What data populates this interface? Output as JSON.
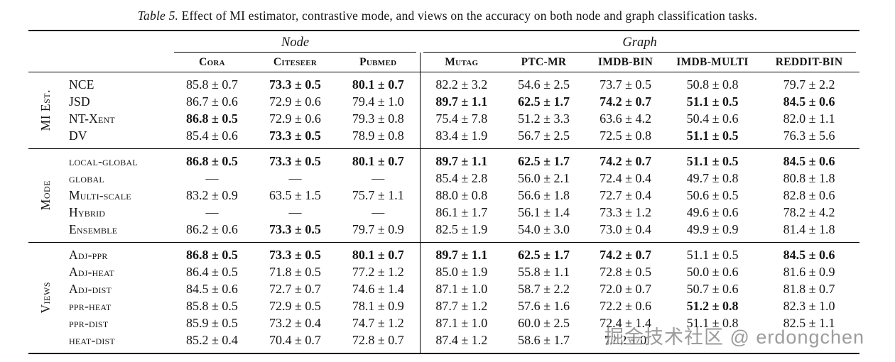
{
  "caption": {
    "label": "Table 5.",
    "text": " Effect of MI estimator, contrastive mode, and views on the accuracy on both node and graph classification tasks."
  },
  "table": {
    "col_groups": [
      {
        "label": "Node",
        "span": 3
      },
      {
        "label": "Graph",
        "span": 5
      }
    ],
    "columns": [
      "Cora",
      "Citeseer",
      "Pubmed",
      "Mutag",
      "PTC-MR",
      "IMDB-BIN",
      "IMDB-MULTI",
      "REDDIT-BIN"
    ],
    "sections": [
      {
        "group_label": "MI Est.",
        "rows": [
          {
            "label": "NCE",
            "values": [
              "85.8 ± 0.7",
              "73.3 ± 0.5",
              "80.1 ± 0.7",
              "82.2 ± 3.2",
              "54.6 ± 2.5",
              "73.7 ± 0.5",
              "50.8 ± 0.8",
              "79.7 ± 2.2"
            ],
            "bold": [
              0,
              1,
              1,
              0,
              0,
              0,
              0,
              0
            ]
          },
          {
            "label": "JSD",
            "values": [
              "86.7 ± 0.6",
              "72.9 ± 0.6",
              "79.4 ± 1.0",
              "89.7 ± 1.1",
              "62.5 ± 1.7",
              "74.2 ± 0.7",
              "51.1 ± 0.5",
              "84.5 ± 0.6"
            ],
            "bold": [
              0,
              0,
              0,
              1,
              1,
              1,
              1,
              1
            ]
          },
          {
            "label": "NT-Xent",
            "values": [
              "86.8 ± 0.5",
              "72.9 ± 0.6",
              "79.3 ± 0.8",
              "75.4 ± 7.8",
              "51.2 ± 3.3",
              "63.6 ± 4.2",
              "50.4 ± 0.6",
              "82.0 ± 1.1"
            ],
            "bold": [
              1,
              0,
              0,
              0,
              0,
              0,
              0,
              0
            ]
          },
          {
            "label": "DV",
            "values": [
              "85.4 ± 0.6",
              "73.3 ± 0.5",
              "78.9 ± 0.8",
              "83.4 ± 1.9",
              "56.7 ± 2.5",
              "72.5 ± 0.8",
              "51.1 ± 0.5",
              "76.3 ± 5.6"
            ],
            "bold": [
              0,
              1,
              0,
              0,
              0,
              0,
              1,
              0
            ]
          }
        ]
      },
      {
        "group_label": "Mode",
        "rows": [
          {
            "label": "local-global",
            "values": [
              "86.8 ± 0.5",
              "73.3 ± 0.5",
              "80.1 ± 0.7",
              "89.7 ± 1.1",
              "62.5 ± 1.7",
              "74.2 ± 0.7",
              "51.1 ± 0.5",
              "84.5 ± 0.6"
            ],
            "bold": [
              1,
              1,
              1,
              1,
              1,
              1,
              1,
              1
            ]
          },
          {
            "label": "global",
            "values": [
              "—",
              "—",
              "—",
              "85.4 ± 2.8",
              "56.0 ± 2.1",
              "72.4 ± 0.4",
              "49.7 ± 0.8",
              "80.8 ± 1.8"
            ],
            "bold": [
              0,
              0,
              0,
              0,
              0,
              0,
              0,
              0
            ]
          },
          {
            "label": "Multi-scale",
            "values": [
              "83.2 ± 0.9",
              "63.5 ± 1.5",
              "75.7 ± 1.1",
              "88.0 ± 0.8",
              "56.6 ± 1.8",
              "72.7 ± 0.4",
              "50.6 ± 0.5",
              "82.8 ± 0.6"
            ],
            "bold": [
              0,
              0,
              0,
              0,
              0,
              0,
              0,
              0
            ]
          },
          {
            "label": "Hybrid",
            "values": [
              "—",
              "—",
              "—",
              "86.1 ± 1.7",
              "56.1 ± 1.4",
              "73.3 ± 1.2",
              "49.6 ± 0.6",
              "78.2 ± 4.2"
            ],
            "bold": [
              0,
              0,
              0,
              0,
              0,
              0,
              0,
              0
            ]
          },
          {
            "label": "Ensemble",
            "values": [
              "86.2 ± 0.6",
              "73.3 ± 0.5",
              "79.7 ± 0.9",
              "82.5 ± 1.9",
              "54.0 ± 3.0",
              "73.0 ± 0.4",
              "49.9 ± 0.9",
              "81.4 ± 1.8"
            ],
            "bold": [
              0,
              1,
              0,
              0,
              0,
              0,
              0,
              0
            ]
          }
        ]
      },
      {
        "group_label": "Views",
        "rows": [
          {
            "label": "Adj-ppr",
            "values": [
              "86.8 ± 0.5",
              "73.3 ± 0.5",
              "80.1 ± 0.7",
              "89.7 ± 1.1",
              "62.5 ± 1.7",
              "74.2 ± 0.7",
              "51.1 ± 0.5",
              "84.5 ± 0.6"
            ],
            "bold": [
              1,
              1,
              1,
              1,
              1,
              1,
              0,
              1
            ]
          },
          {
            "label": "Adj-heat",
            "values": [
              "86.4 ± 0.5",
              "71.8 ± 0.5",
              "77.2 ± 1.2",
              "85.0 ± 1.9",
              "55.8 ± 1.1",
              "72.8 ± 0.5",
              "50.0 ± 0.6",
              "81.6 ± 0.9"
            ],
            "bold": [
              0,
              0,
              0,
              0,
              0,
              0,
              0,
              0
            ]
          },
          {
            "label": "Adj-dist",
            "values": [
              "84.5 ± 0.6",
              "72.7 ± 0.7",
              "74.6 ± 1.4",
              "87.1 ± 1.0",
              "58.7 ± 2.2",
              "72.0 ± 0.7",
              "50.7 ± 0.6",
              "81.8 ± 0.7"
            ],
            "bold": [
              0,
              0,
              0,
              0,
              0,
              0,
              0,
              0
            ]
          },
          {
            "label": "ppr-heat",
            "values": [
              "85.8 ± 0.5",
              "72.9 ± 0.5",
              "78.1 ± 0.9",
              "87.7 ± 1.2",
              "57.6 ± 1.6",
              "72.2 ± 0.6",
              "51.2 ± 0.8",
              "82.3 ± 1.0"
            ],
            "bold": [
              0,
              0,
              0,
              0,
              0,
              0,
              1,
              0
            ]
          },
          {
            "label": "ppr-dist",
            "values": [
              "85.9 ± 0.5",
              "73.2 ± 0.4",
              "74.7 ± 1.2",
              "87.1 ± 1.0",
              "60.0 ± 2.5",
              "72.4 ± 1.4",
              "51.1 ± 0.8",
              "82.5 ± 1.1"
            ],
            "bold": [
              0,
              0,
              0,
              0,
              0,
              0,
              0,
              0
            ]
          },
          {
            "label": "heat-dist",
            "values": [
              "85.2 ± 0.4",
              "70.4 ± 0.7",
              "72.8 ± 0.7",
              "87.4 ± 1.2",
              "58.6 ± 1.7",
              "72.2 ± 0",
              "",
              ""
            ],
            "bold": [
              0,
              0,
              0,
              0,
              0,
              0,
              0,
              0
            ]
          }
        ]
      }
    ]
  },
  "watermark": {
    "text": "掘金技术社区 @ erdongchen"
  }
}
